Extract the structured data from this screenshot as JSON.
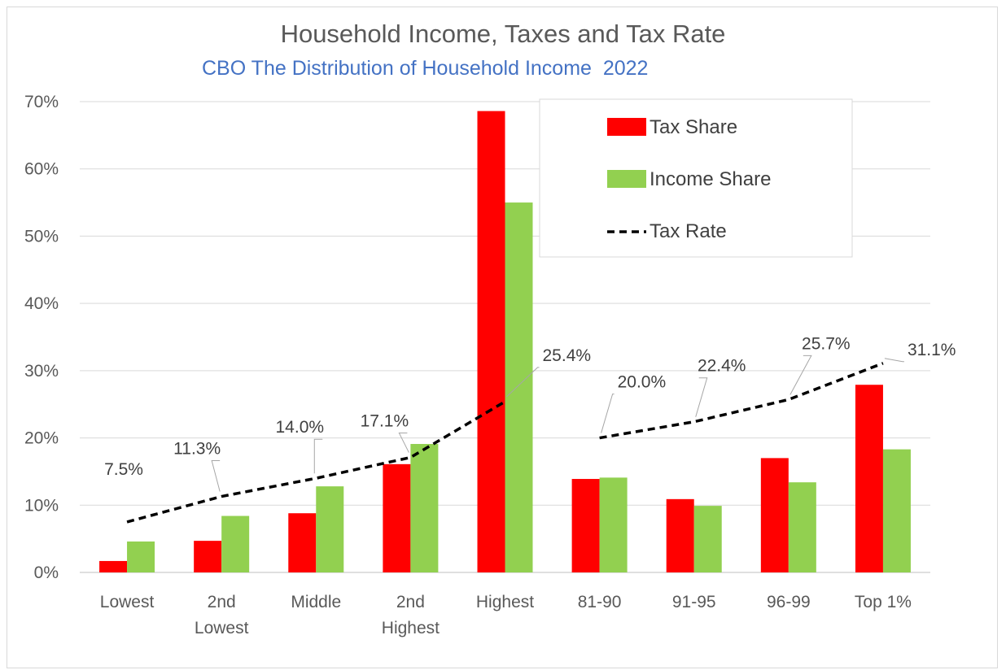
{
  "chart_data": {
    "type": "bar",
    "title": "Household Income, Taxes and Tax Rate",
    "subtitle": "CBO The Distribution of Household Income  2022",
    "categories": [
      [
        "Lowest"
      ],
      [
        "2nd",
        "Lowest"
      ],
      [
        "Middle"
      ],
      [
        "2nd",
        "Highest"
      ],
      [
        "Highest"
      ],
      [
        "81-90"
      ],
      [
        "91-95"
      ],
      [
        "96-99"
      ],
      [
        "Top 1%"
      ]
    ],
    "series": [
      {
        "name": "Tax Share",
        "type": "bar",
        "color": "#ff0000",
        "values": [
          1.7,
          4.7,
          8.8,
          16.1,
          68.6,
          13.9,
          10.9,
          17.0,
          27.9
        ]
      },
      {
        "name": "Income Share",
        "type": "bar",
        "color": "#92d050",
        "values": [
          4.6,
          8.4,
          12.8,
          19.1,
          55.0,
          14.1,
          9.9,
          13.4,
          18.3
        ]
      },
      {
        "name": "Tax Rate",
        "type": "line",
        "style": "dashed",
        "color": "#000000",
        "segments": [
          [
            0,
            1,
            2,
            3,
            4
          ],
          [
            5,
            6,
            7,
            8
          ]
        ],
        "values": [
          7.5,
          11.3,
          14.0,
          17.1,
          25.4,
          20.0,
          22.4,
          25.7,
          31.1
        ],
        "labels": [
          "7.5%",
          "11.3%",
          "14.0%",
          "17.1%",
          "25.4%",
          "20.0%",
          "22.4%",
          "25.7%",
          "31.1%"
        ]
      }
    ],
    "ylim": [
      0,
      70
    ],
    "yticks": [
      0,
      10,
      20,
      30,
      40,
      50,
      60,
      70
    ],
    "ytick_labels": [
      "0%",
      "10%",
      "20%",
      "30%",
      "40%",
      "50%",
      "60%",
      "70%"
    ],
    "grid": true,
    "legend": {
      "position": "top-right",
      "entries": [
        "Tax Share",
        "Income Share",
        "Tax Rate"
      ]
    },
    "xlabel": "",
    "ylabel": ""
  }
}
